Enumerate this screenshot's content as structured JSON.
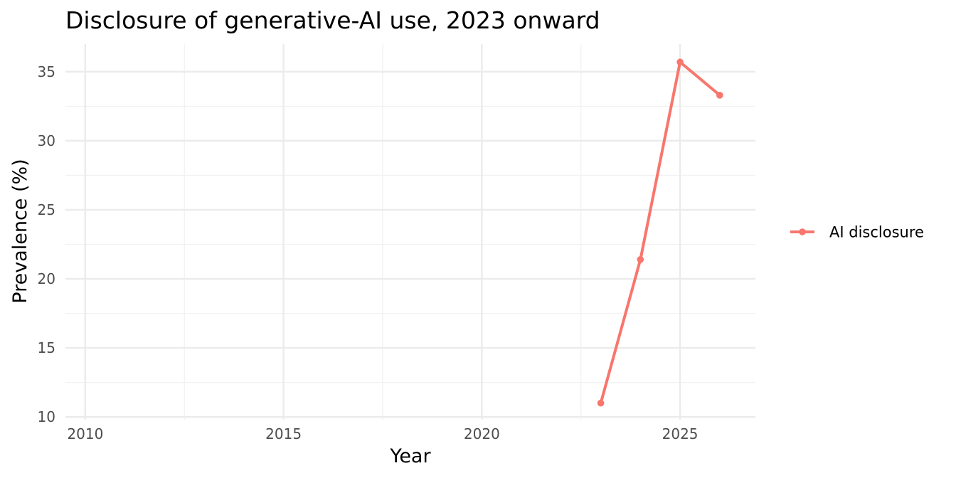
{
  "chart_data": {
    "type": "line",
    "title": "Disclosure of generative-AI use, 2023 onward",
    "xlabel": "Year",
    "ylabel": "Prevalence (%)",
    "xlim": [
      2009.5,
      2026.9
    ],
    "ylim": [
      9.8,
      37.0
    ],
    "x_ticks": [
      2010,
      2015,
      2020,
      2025
    ],
    "x_tick_labels": [
      "2010",
      "2015",
      "2020",
      "2025"
    ],
    "y_ticks": [
      10,
      15,
      20,
      25,
      30,
      35
    ],
    "y_tick_labels": [
      "10",
      "15",
      "20",
      "25",
      "30",
      "35"
    ],
    "x_minor_ticks": [
      2012.5,
      2017.5,
      2022.5
    ],
    "y_minor_ticks": [
      12.5,
      17.5,
      22.5,
      27.5,
      32.5
    ],
    "grid": true,
    "legend": "right",
    "series": [
      {
        "name": "AI disclosure",
        "color": "#F8766D",
        "x": [
          2023,
          2024,
          2025,
          2026
        ],
        "y": [
          11.0,
          21.4,
          35.7,
          33.3
        ]
      }
    ]
  }
}
